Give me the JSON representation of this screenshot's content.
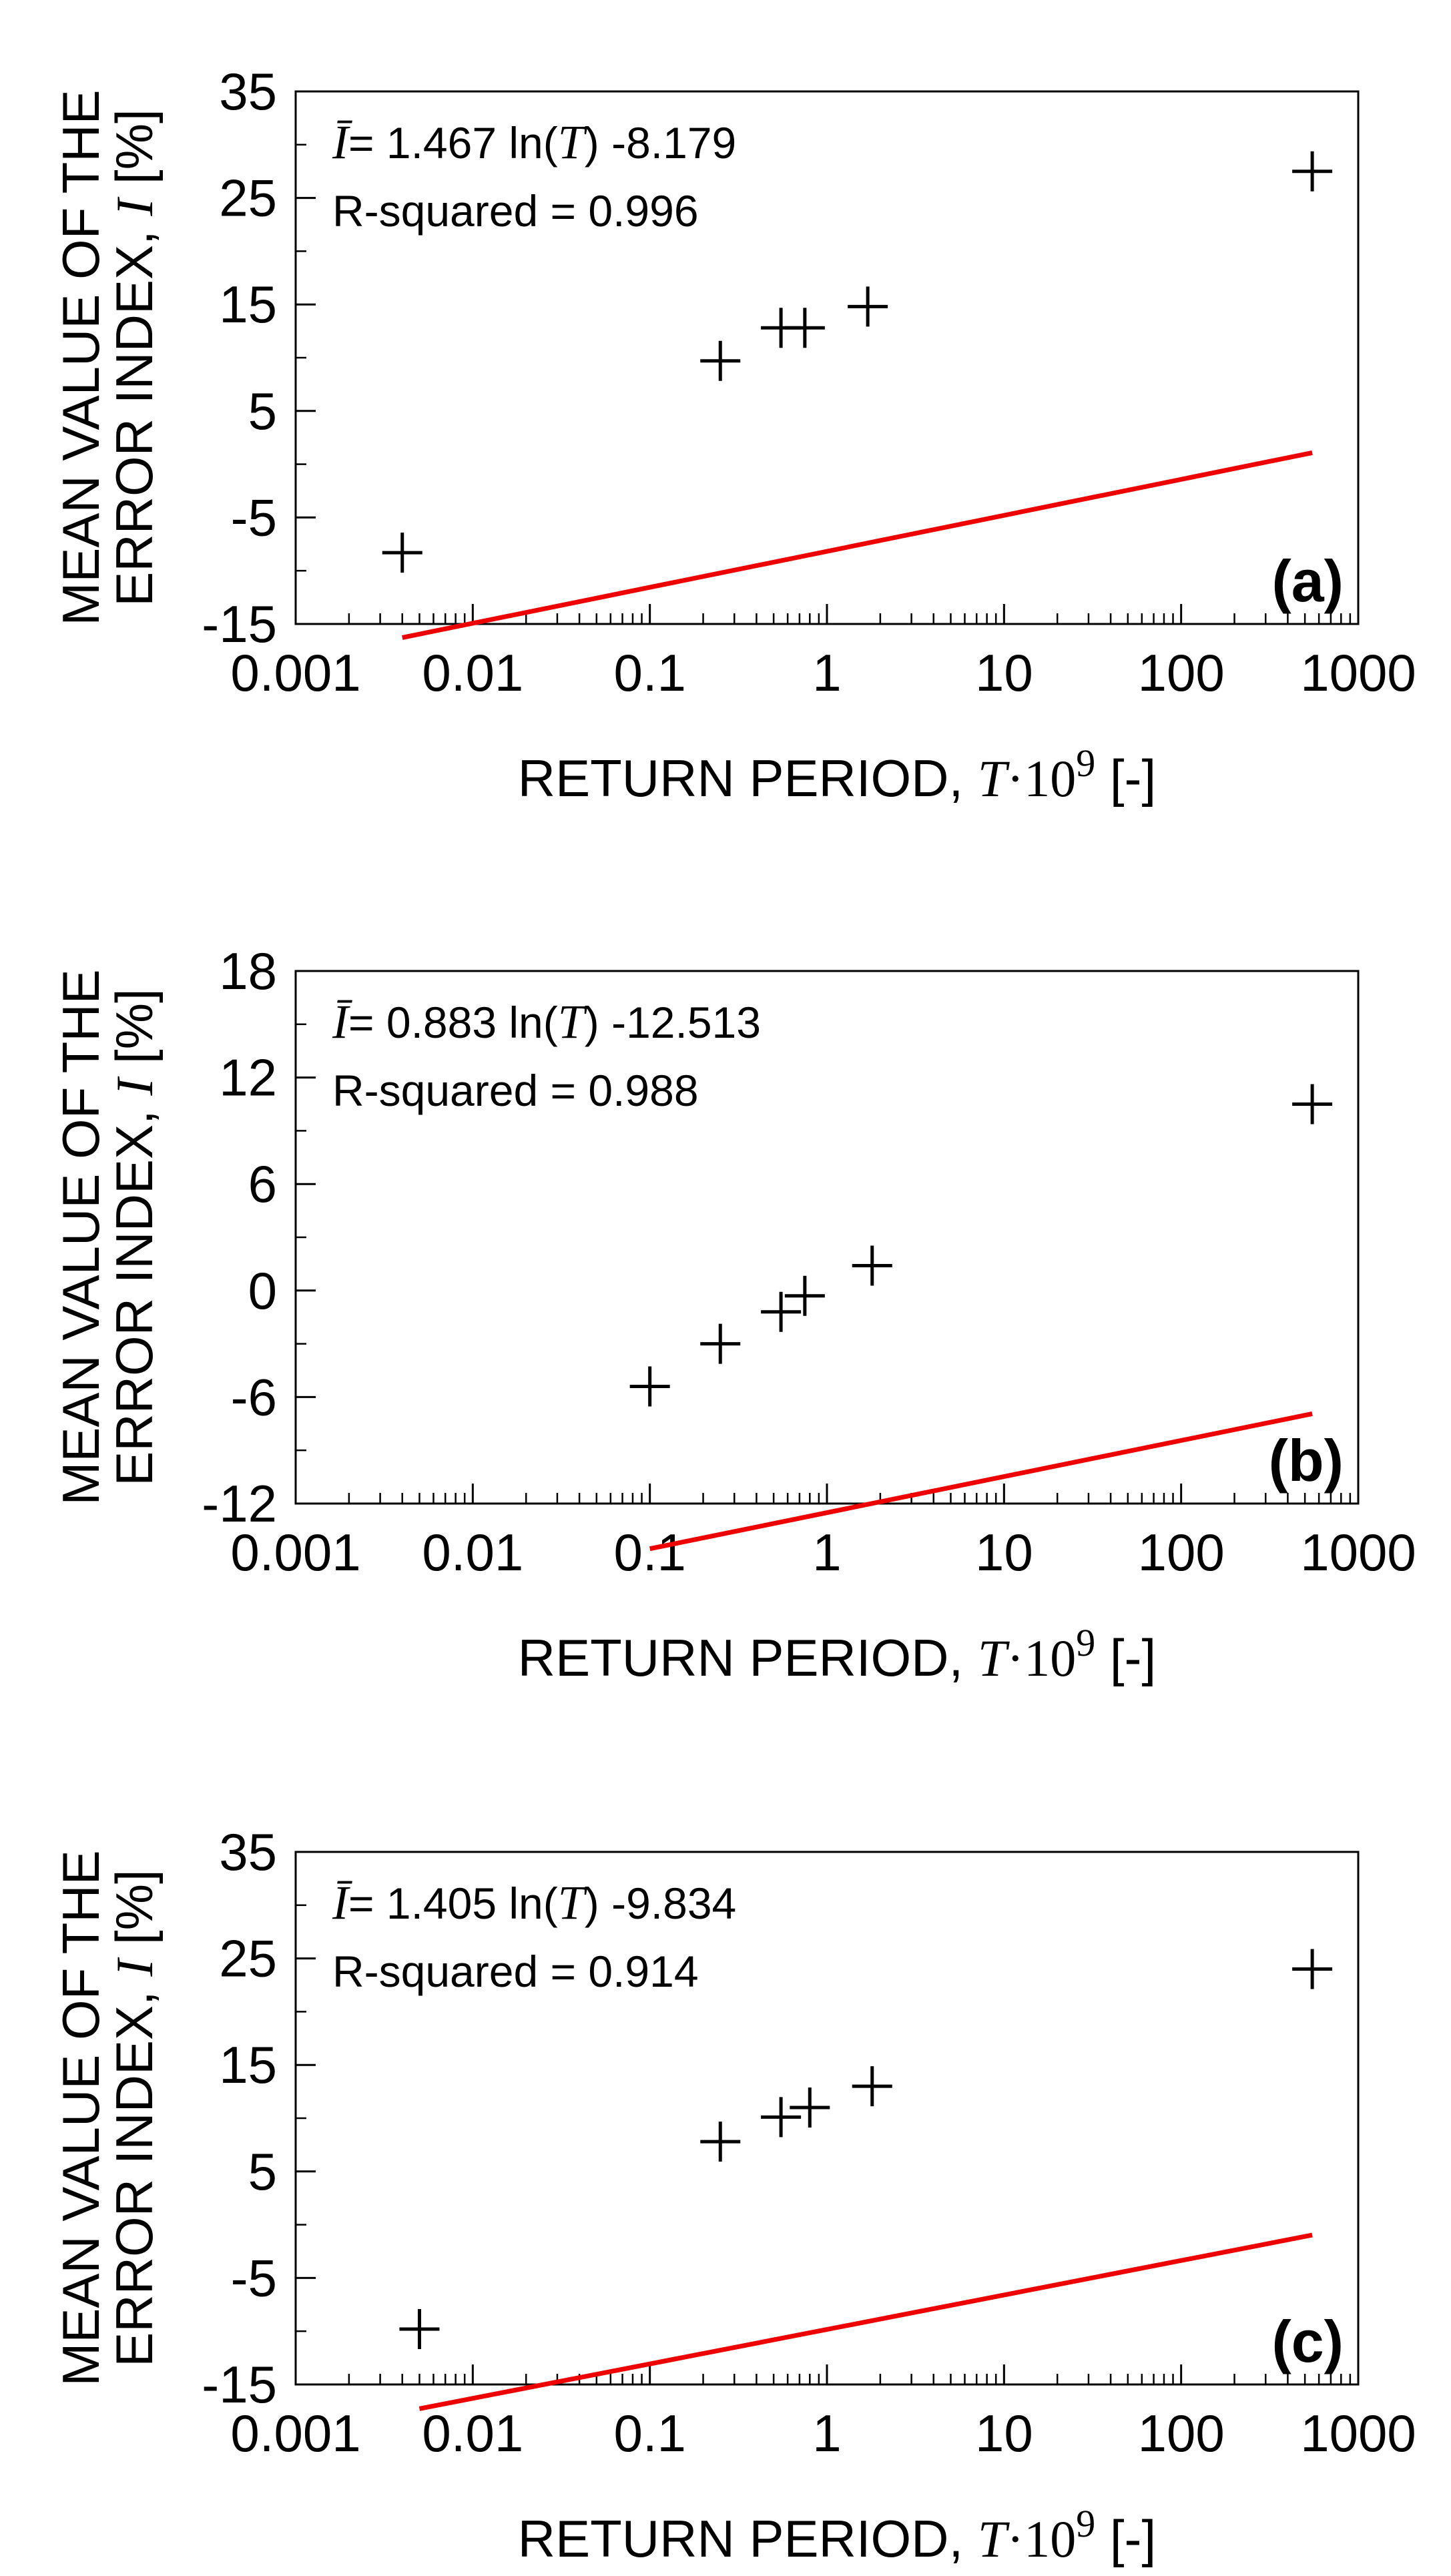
{
  "chart_data": [
    {
      "type": "scatter",
      "panel_label": "(a)",
      "x_scale": "log",
      "xlim": [
        0.001,
        1000
      ],
      "x_ticks": [
        0.001,
        0.01,
        0.1,
        1,
        10,
        100,
        1000
      ],
      "x_tick_labels": [
        "0.001",
        "0.01",
        "0.1",
        "1",
        "10",
        "100",
        "1000"
      ],
      "ylim": [
        -15,
        35
      ],
      "y_ticks": [
        -15,
        -5,
        5,
        15,
        25,
        35
      ],
      "y_tick_labels": [
        "-15",
        "-5",
        "5",
        "15",
        "25",
        "35"
      ],
      "y_minor_step": 5,
      "xlabel": {
        "text": "RETURN PERIOD,",
        "var": "T",
        "dot": "·10",
        "exp": "9",
        "unit": "[-]"
      },
      "ylabel": {
        "line1": "MEAN VALUE OF THE",
        "line2": "ERROR INDEX,",
        "var": "I",
        "unit": "[%]"
      },
      "equation": {
        "lhs": "Ī",
        "eq": "= 1.467 ln(",
        "var": "T",
        "close": ")",
        "rest": "-8.179"
      },
      "r_squared": "R-squared = 0.996",
      "fit": {
        "slope": 1.467,
        "intercept": -8.179,
        "x_range": [
          0.004,
          550
        ]
      },
      "points": [
        {
          "x": 0.004,
          "y": -8.3
        },
        {
          "x": 0.25,
          "y": 9.7
        },
        {
          "x": 0.55,
          "y": 12.8
        },
        {
          "x": 0.75,
          "y": 12.8
        },
        {
          "x": 1.7,
          "y": 14.8
        },
        {
          "x": 550,
          "y": 27.5
        }
      ]
    },
    {
      "type": "scatter",
      "panel_label": "(b)",
      "x_scale": "log",
      "xlim": [
        0.001,
        1000
      ],
      "x_ticks": [
        0.001,
        0.01,
        0.1,
        1,
        10,
        100,
        1000
      ],
      "x_tick_labels": [
        "0.001",
        "0.01",
        "0.1",
        "1",
        "10",
        "100",
        "1000"
      ],
      "ylim": [
        -12,
        18
      ],
      "y_ticks": [
        -12,
        -6,
        0,
        6,
        12,
        18
      ],
      "y_tick_labels": [
        "-12",
        "-6",
        "0",
        "6",
        "12",
        "18"
      ],
      "y_minor_step": 3,
      "xlabel": {
        "text": "RETURN PERIOD,",
        "var": "T",
        "dot": "·10",
        "exp": "9",
        "unit": "[-]"
      },
      "ylabel": {
        "line1": "MEAN VALUE OF THE",
        "line2": "ERROR INDEX,",
        "var": "I",
        "unit": "[%]"
      },
      "equation": {
        "lhs": "Ī",
        "eq": "= 0.883 ln(",
        "var": "T",
        "close": ")",
        "rest": "-12.513"
      },
      "r_squared": "R-squared = 0.988",
      "fit": {
        "slope": 0.883,
        "intercept": -12.513,
        "x_range": [
          0.1,
          550
        ]
      },
      "points": [
        {
          "x": 0.1,
          "y": -5.4
        },
        {
          "x": 0.25,
          "y": -3.0
        },
        {
          "x": 0.55,
          "y": -1.2
        },
        {
          "x": 0.75,
          "y": -0.3
        },
        {
          "x": 1.8,
          "y": 1.4
        },
        {
          "x": 550,
          "y": 10.5
        }
      ]
    },
    {
      "type": "scatter",
      "panel_label": "(c)",
      "x_scale": "log",
      "xlim": [
        0.001,
        1000
      ],
      "x_ticks": [
        0.001,
        0.01,
        0.1,
        1,
        10,
        100,
        1000
      ],
      "x_tick_labels": [
        "0.001",
        "0.01",
        "0.1",
        "1",
        "10",
        "100",
        "1000"
      ],
      "ylim": [
        -15,
        35
      ],
      "y_ticks": [
        -15,
        -5,
        5,
        15,
        25,
        35
      ],
      "y_tick_labels": [
        "-15",
        "-5",
        "5",
        "15",
        "25",
        "35"
      ],
      "y_minor_step": 5,
      "xlabel": {
        "text": "RETURN PERIOD,",
        "var": "T",
        "dot": "·10",
        "exp": "9",
        "unit": "[-]"
      },
      "ylabel": {
        "line1": "MEAN VALUE OF THE",
        "line2": "ERROR INDEX,",
        "var": "I",
        "unit": "[%]"
      },
      "equation": {
        "lhs": "Ī",
        "eq": "= 1.405 ln(",
        "var": "T",
        "close": ")",
        "rest": "-9.834"
      },
      "r_squared": "R-squared = 0.914",
      "fit": {
        "slope": 1.405,
        "intercept": -9.834,
        "x_range": [
          0.005,
          550
        ]
      },
      "points": [
        {
          "x": 0.005,
          "y": -9.8
        },
        {
          "x": 0.25,
          "y": 7.8
        },
        {
          "x": 0.55,
          "y": 10.1
        },
        {
          "x": 0.8,
          "y": 11.0
        },
        {
          "x": 1.8,
          "y": 13.0
        },
        {
          "x": 550,
          "y": 24.0
        }
      ]
    }
  ]
}
